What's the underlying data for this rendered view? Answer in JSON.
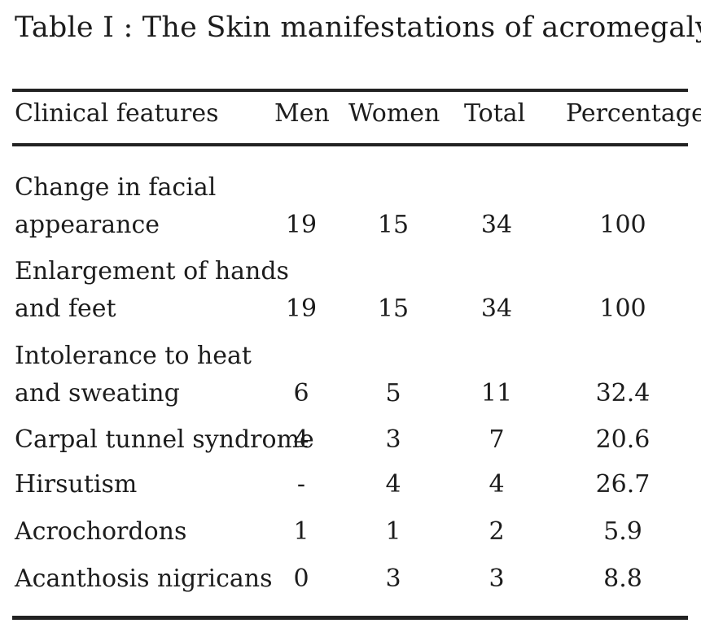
{
  "table": {
    "title": "Table I : The Skin manifestations of acromegaly",
    "headers": {
      "feature": "Clinical features",
      "men": "Men",
      "women": "Women",
      "total": "Total",
      "percentage": "Percentage"
    },
    "rows": [
      {
        "feature_line1": "Change in facial",
        "feature_line2": "appearance",
        "men": "19",
        "women": "15",
        "total": "34",
        "percentage": "100"
      },
      {
        "feature_line1": "Enlargement of hands",
        "feature_line2": "and feet",
        "men": "19",
        "women": "15",
        "total": "34",
        "percentage": "100"
      },
      {
        "feature_line1": "Intolerance to heat",
        "feature_line2": "and sweating",
        "men": "6",
        "women": "5",
        "total": "11",
        "percentage": "32.4"
      },
      {
        "feature_line1": "Carpal tunnel syndrome",
        "men": "4",
        "women": "3",
        "total": "7",
        "percentage": "20.6"
      },
      {
        "feature_line1": "Hirsutism",
        "men": "-",
        "women": "4",
        "total": "4",
        "percentage": "26.7"
      },
      {
        "feature_line1": "Acrochordons",
        "men": "1",
        "women": "1",
        "total": "2",
        "percentage": "5.9"
      },
      {
        "feature_line1": "Acanthosis nigricans",
        "men": "0",
        "women": "3",
        "total": "3",
        "percentage": "8.8"
      }
    ]
  }
}
